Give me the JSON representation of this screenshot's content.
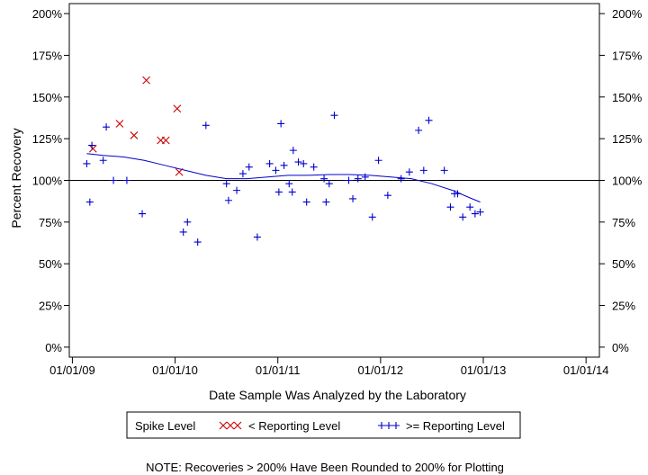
{
  "chart_data": {
    "type": "scatter",
    "xlabel": "Date Sample Was Analyzed by the Laboratory",
    "ylabel": "Percent Recovery",
    "x_ticks": [
      "01/01/09",
      "01/01/10",
      "01/01/11",
      "01/01/12",
      "01/01/13",
      "01/01/14"
    ],
    "x_tick_years": [
      2009,
      2010,
      2011,
      2012,
      2013,
      2014
    ],
    "xlim": [
      2008.97,
      2014.13
    ],
    "y_ticks": [
      "0%",
      "25%",
      "50%",
      "75%",
      "100%",
      "125%",
      "150%",
      "175%",
      "200%"
    ],
    "y_tick_values": [
      0,
      25,
      50,
      75,
      100,
      125,
      150,
      175,
      200
    ],
    "ylim": [
      -6,
      206
    ],
    "reference_line": 100,
    "legend": {
      "title": "Spike Level",
      "entries": [
        {
          "label": "< Reporting Level",
          "marker": "x",
          "color": "#cc0000"
        },
        {
          "label": ">= Reporting Level",
          "marker": "+",
          "color": "#0000cc"
        }
      ]
    },
    "note": "NOTE: Recoveries > 200% Have Been Rounded to 200% for Plotting",
    "series": [
      {
        "name": "< Reporting Level",
        "marker": "x",
        "color": "#cc0000",
        "points": [
          [
            2009.2,
            119
          ],
          [
            2009.46,
            134
          ],
          [
            2009.6,
            127
          ],
          [
            2009.72,
            160
          ],
          [
            2009.86,
            124
          ],
          [
            2009.91,
            124
          ],
          [
            2010.02,
            143
          ],
          [
            2010.04,
            105
          ]
        ]
      },
      {
        "name": ">= Reporting Level",
        "marker": "+",
        "color": "#0000cc",
        "points": [
          [
            2009.14,
            110
          ],
          [
            2009.17,
            87
          ],
          [
            2009.19,
            121
          ],
          [
            2009.3,
            112
          ],
          [
            2009.33,
            132
          ],
          [
            2009.4,
            100
          ],
          [
            2009.53,
            100
          ],
          [
            2009.68,
            80
          ],
          [
            2010.08,
            69
          ],
          [
            2010.12,
            75
          ],
          [
            2010.22,
            63
          ],
          [
            2010.3,
            133
          ],
          [
            2010.5,
            98
          ],
          [
            2010.52,
            88
          ],
          [
            2010.6,
            94
          ],
          [
            2010.66,
            104
          ],
          [
            2010.72,
            108
          ],
          [
            2010.8,
            66
          ],
          [
            2010.92,
            110
          ],
          [
            2010.98,
            106
          ],
          [
            2011.01,
            93
          ],
          [
            2011.03,
            134
          ],
          [
            2011.06,
            109
          ],
          [
            2011.11,
            98
          ],
          [
            2011.14,
            93
          ],
          [
            2011.15,
            118
          ],
          [
            2011.2,
            111
          ],
          [
            2011.25,
            110
          ],
          [
            2011.28,
            87
          ],
          [
            2011.35,
            108
          ],
          [
            2011.45,
            101
          ],
          [
            2011.47,
            87
          ],
          [
            2011.5,
            98
          ],
          [
            2011.55,
            139
          ],
          [
            2011.69,
            100
          ],
          [
            2011.73,
            89
          ],
          [
            2011.78,
            101
          ],
          [
            2011.85,
            102
          ],
          [
            2011.92,
            78
          ],
          [
            2011.98,
            112
          ],
          [
            2012.07,
            91
          ],
          [
            2012.2,
            101
          ],
          [
            2012.28,
            105
          ],
          [
            2012.37,
            130
          ],
          [
            2012.42,
            106
          ],
          [
            2012.47,
            136
          ],
          [
            2012.62,
            106
          ],
          [
            2012.68,
            84
          ],
          [
            2012.72,
            92
          ],
          [
            2012.75,
            92
          ],
          [
            2012.8,
            78
          ],
          [
            2012.87,
            84
          ],
          [
            2012.92,
            80
          ],
          [
            2012.97,
            81
          ]
        ]
      },
      {
        "name": "",
        "marker": "line",
        "color": "#0000cc",
        "points": [
          [
            2009.14,
            116
          ],
          [
            2009.3,
            115
          ],
          [
            2009.5,
            114
          ],
          [
            2009.7,
            112
          ],
          [
            2009.9,
            109
          ],
          [
            2010.1,
            106
          ],
          [
            2010.3,
            103
          ],
          [
            2010.5,
            101
          ],
          [
            2010.7,
            101
          ],
          [
            2010.9,
            102
          ],
          [
            2011.1,
            103
          ],
          [
            2011.3,
            103
          ],
          [
            2011.5,
            103.5
          ],
          [
            2011.7,
            103.5
          ],
          [
            2011.9,
            103
          ],
          [
            2012.1,
            102
          ],
          [
            2012.3,
            101
          ],
          [
            2012.5,
            98
          ],
          [
            2012.7,
            94
          ],
          [
            2012.85,
            90
          ],
          [
            2012.97,
            87
          ]
        ]
      }
    ]
  }
}
